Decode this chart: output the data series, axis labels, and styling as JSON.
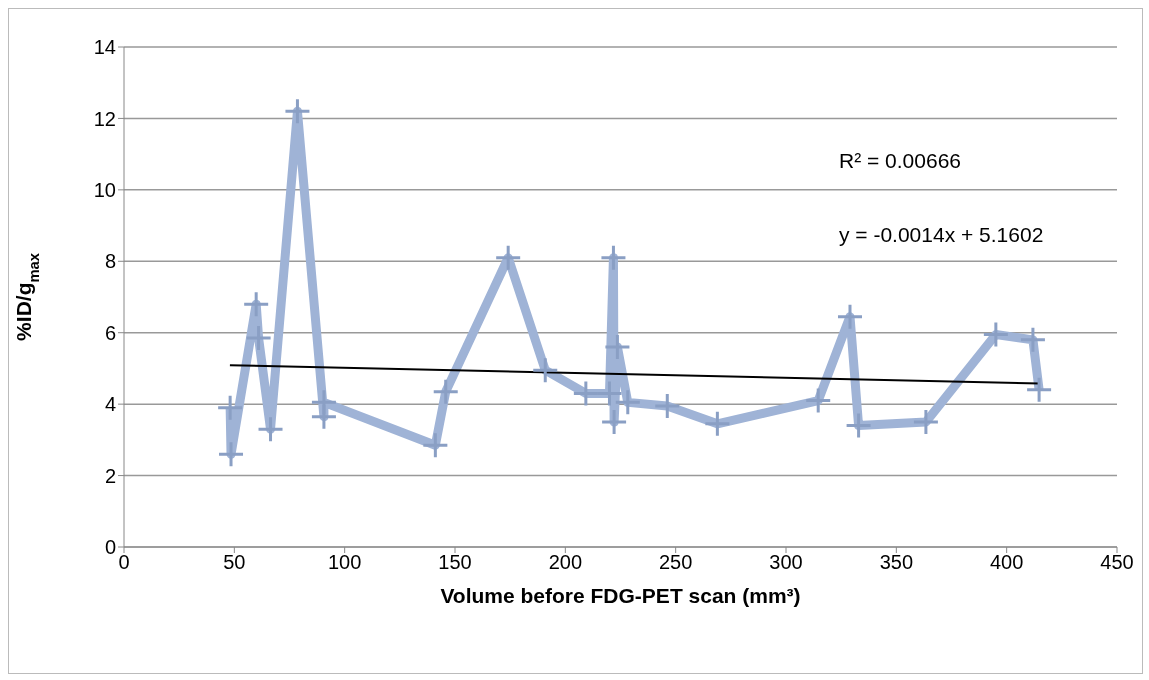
{
  "chart_data": {
    "type": "line",
    "xlabel": "Volume before FDG-PET scan (mm³)",
    "ylabel": "%ID/g$_{max}$",
    "series": [
      {
        "color": "#9fb3d6",
        "marker": "cross",
        "x": [
          48.1,
          48.5,
          59.9,
          61,
          66.4,
          78.6,
          90.6,
          90.6,
          141.1,
          145.8,
          174.1,
          190.9,
          209.3,
          220,
          221.8,
          222.1,
          223.6,
          228.3,
          246.2,
          268.9,
          314.6,
          329,
          332.9,
          363.4,
          395.1,
          411.9,
          414.7
        ],
        "values": [
          3.9,
          2.6,
          6.8,
          5.85,
          3.3,
          12.2,
          3.65,
          4.05,
          2.85,
          4.35,
          8.1,
          4.95,
          4.3,
          4.3,
          8.1,
          3.5,
          5.6,
          4.05,
          3.95,
          3.45,
          4.1,
          6.45,
          3.4,
          3.5,
          5.95,
          5.8,
          4.4
        ]
      },
      {
        "color": "#000000",
        "marker": "none",
        "x": [
          48,
          415
        ],
        "values": [
          5.09,
          4.58
        ]
      }
    ],
    "xlim": [
      0,
      450
    ],
    "xticks": [
      0,
      50,
      100,
      150,
      200,
      250,
      300,
      350,
      400,
      450
    ],
    "ylim": [
      0,
      14
    ],
    "yticks": [
      0,
      2,
      4,
      6,
      8,
      10,
      12,
      14
    ],
    "grid": "y",
    "legend": false,
    "annotations": [
      "R² = 0.00666",
      "y = -0.0014x + 5.1602"
    ]
  }
}
